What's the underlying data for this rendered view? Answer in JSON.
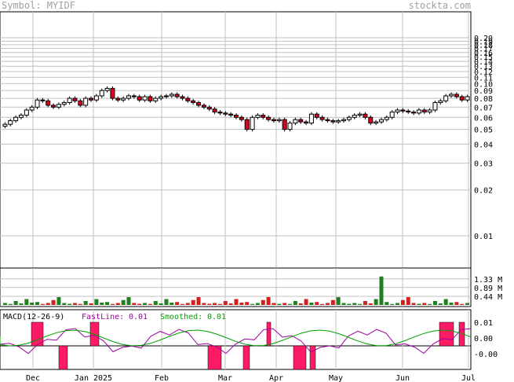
{
  "header": {
    "symbol": "Symbol: MYIDF",
    "site": "stockta.com"
  },
  "chart_data": [
    {
      "type": "candlestick",
      "scale": "log",
      "ylim": [
        0.006,
        0.2
      ],
      "grid": true,
      "y_ticks": [
        "0.20",
        "0.19",
        "0.18",
        "0.17",
        "0.16",
        "0.15",
        "0.14",
        "0.13",
        "0.12",
        "0.11",
        "0.10",
        "0.09",
        "0.08",
        "0.07",
        "0.06",
        "0.05",
        "0.04",
        "0.03",
        "0.02",
        "0.01"
      ],
      "x_labels": [
        "Dec",
        "Jan 2025",
        "Feb",
        "Mar",
        "Apr",
        "May",
        "Jun",
        "Jul"
      ],
      "closes": [
        0.054,
        0.057,
        0.06,
        0.062,
        0.067,
        0.07,
        0.078,
        0.077,
        0.072,
        0.07,
        0.073,
        0.075,
        0.08,
        0.077,
        0.072,
        0.08,
        0.078,
        0.083,
        0.09,
        0.093,
        0.08,
        0.078,
        0.08,
        0.083,
        0.082,
        0.078,
        0.082,
        0.077,
        0.08,
        0.082,
        0.083,
        0.085,
        0.082,
        0.08,
        0.077,
        0.075,
        0.072,
        0.07,
        0.068,
        0.065,
        0.064,
        0.063,
        0.062,
        0.06,
        0.058,
        0.05,
        0.06,
        0.062,
        0.06,
        0.058,
        0.057,
        0.058,
        0.05,
        0.055,
        0.058,
        0.056,
        0.055,
        0.063,
        0.06,
        0.058,
        0.057,
        0.056,
        0.057,
        0.058,
        0.06,
        0.062,
        0.063,
        0.06,
        0.055,
        0.056,
        0.058,
        0.06,
        0.065,
        0.067,
        0.066,
        0.065,
        0.064,
        0.067,
        0.065,
        0.067,
        0.075,
        0.077,
        0.083,
        0.085,
        0.082,
        0.078,
        0.082
      ],
      "volume_ticks": [
        "1.33 M",
        "0.89 M",
        "0.44 M"
      ]
    },
    {
      "type": "line",
      "title": "MACD(12-26-9)",
      "series": [
        {
          "name": "FastLine",
          "value_label": "0.01",
          "color": "#a000a0"
        },
        {
          "name": "Smoothed",
          "value_label": "0.01",
          "color": "#00a000"
        }
      ],
      "y_ticks": [
        "0.01",
        "0.00",
        "-0.00"
      ]
    }
  ],
  "macd_legend": {
    "title": "MACD(12-26-9)",
    "fast_label": "FastLine:",
    "fast_value": "0.01",
    "smooth_label": "Smoothed:",
    "smooth_value": "0.01"
  },
  "colors": {
    "up_fill": "#ffffff",
    "down_fill": "#e00020",
    "grid": "#c0c0c0",
    "vol_up": "#208020",
    "vol_down": "#d02020",
    "hist": "#ff1a66"
  }
}
